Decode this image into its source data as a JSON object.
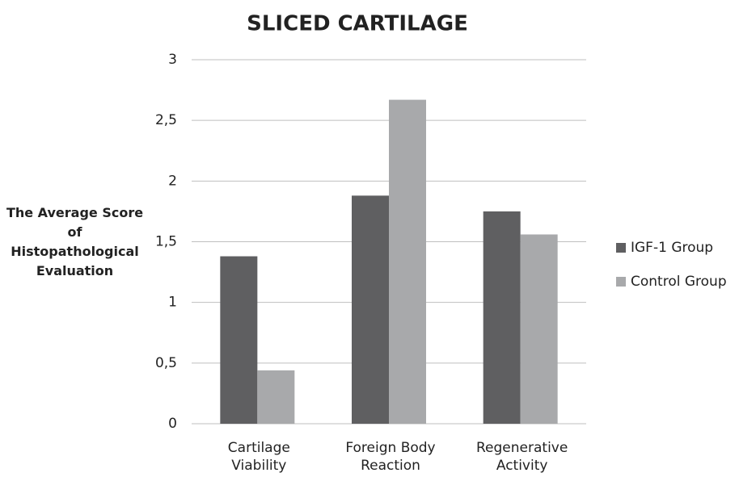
{
  "chart_data": {
    "type": "bar",
    "title": "SLICED CARTILAGE",
    "y_label": "The Average Score of Histopathological Evaluation",
    "categories": [
      "Cartilage Viability",
      "Foreign Body Reaction",
      "Regenerative Activity"
    ],
    "series": [
      {
        "name": "IGF-1 Group",
        "color": "#5f5f61",
        "values": [
          1.38,
          1.88,
          1.75
        ]
      },
      {
        "name": "Control Group",
        "color": "#a8a9ab",
        "values": [
          0.44,
          2.67,
          1.56
        ]
      }
    ],
    "ylim": [
      0,
      3
    ],
    "yticks": [
      0,
      {
        "value": 0.5,
        "label": "0,5"
      },
      1,
      {
        "value": 1.5,
        "label": "1,5"
      },
      2,
      {
        "value": 2.5,
        "label": "2,5"
      },
      3
    ],
    "grid": true,
    "legend": "right"
  }
}
